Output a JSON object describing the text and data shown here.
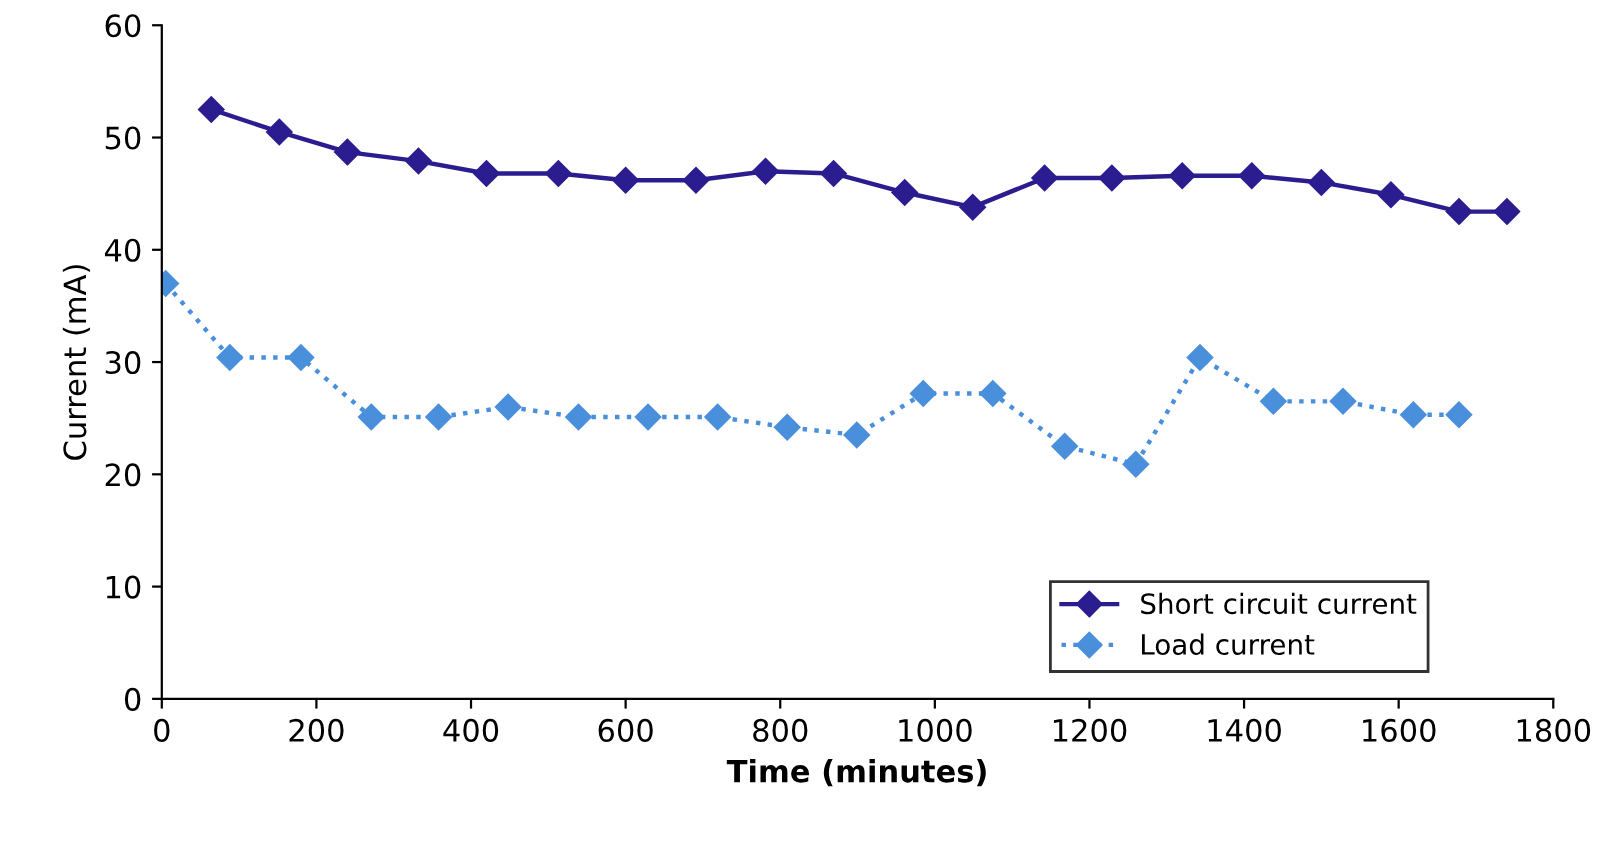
{
  "chart_data": {
    "type": "line",
    "xlabel": "Time (minutes)",
    "ylabel": "Current (mA)",
    "xlim": [
      0,
      1800
    ],
    "xticks": [
      0,
      200,
      400,
      600,
      800,
      1000,
      1200,
      1400,
      1600,
      1800
    ],
    "ylim": [
      0,
      60
    ],
    "yticks": [
      0,
      10,
      20,
      30,
      40,
      50,
      60
    ],
    "grid": false,
    "legend": "bottom right",
    "marker": "diamond",
    "series": [
      {
        "name": "Short circuit current",
        "color": "#2b1d8f",
        "line_style": "solid",
        "x": [
          64,
          152,
          240,
          332,
          420,
          513,
          600,
          691,
          781,
          869,
          961,
          1049,
          1142,
          1229,
          1320,
          1410,
          1500,
          1590,
          1678,
          1740
        ],
        "values": [
          52.5,
          50.5,
          48.7,
          47.9,
          46.8,
          46.8,
          46.2,
          46.2,
          47,
          46.8,
          45.1,
          43.8,
          46.4,
          46.4,
          46.6,
          46.6,
          46,
          44.9,
          43.4,
          43.4
        ]
      },
      {
        "name": "Load current",
        "color": "#4a8fdb",
        "line_style": "dotted",
        "x": [
          5,
          88,
          180,
          271,
          358,
          448,
          539,
          629,
          719,
          809,
          899,
          985,
          1075,
          1168,
          1260,
          1343,
          1438,
          1528,
          1619,
          1678
        ],
        "values": [
          37,
          30.4,
          30.4,
          25.1,
          25.1,
          26,
          25.1,
          25.1,
          25.1,
          24.2,
          23.5,
          27.2,
          27.2,
          22.5,
          20.9,
          30.4,
          26.5,
          26.5,
          25.3,
          25.3
        ]
      }
    ]
  }
}
